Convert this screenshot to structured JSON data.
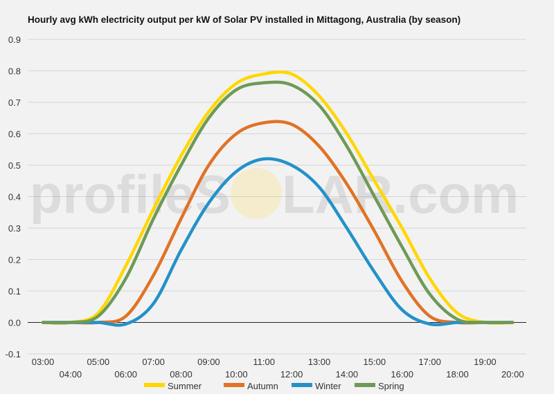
{
  "chart_data": {
    "type": "line",
    "title": "Hourly avg kWh electricity output per kW of Solar PV installed in Mittagong, Australia (by season)",
    "xlabel": "",
    "ylabel": "",
    "x": [
      3,
      4,
      5,
      6,
      7,
      8,
      9,
      10,
      11,
      12,
      13,
      14,
      15,
      16,
      17,
      18,
      19,
      20
    ],
    "x_tick_labels": [
      "03:00",
      "04:00",
      "05:00",
      "06:00",
      "07:00",
      "08:00",
      "09:00",
      "10:00",
      "11:00",
      "12:00",
      "13:00",
      "14:00",
      "15:00",
      "16:00",
      "17:00",
      "18:00",
      "19:00",
      "20:00"
    ],
    "ylim": [
      -0.1,
      0.9
    ],
    "y_ticks": [
      "-0.1",
      "0.0",
      "0.1",
      "0.2",
      "0.3",
      "0.4",
      "0.5",
      "0.6",
      "0.7",
      "0.8",
      "0.9"
    ],
    "grid": true,
    "legend_position": "bottom",
    "series": [
      {
        "name": "Summer",
        "color": "#ffd700",
        "values": [
          0.0,
          0.0,
          0.03,
          0.18,
          0.36,
          0.53,
          0.67,
          0.76,
          0.79,
          0.79,
          0.72,
          0.6,
          0.45,
          0.3,
          0.14,
          0.03,
          0.0,
          0.0
        ]
      },
      {
        "name": "Autumn",
        "color": "#e07326",
        "values": [
          0.0,
          0.0,
          0.0,
          0.02,
          0.15,
          0.33,
          0.5,
          0.6,
          0.635,
          0.63,
          0.56,
          0.44,
          0.29,
          0.13,
          0.02,
          0.0,
          0.0,
          0.0
        ]
      },
      {
        "name": "Winter",
        "color": "#2491c9",
        "values": [
          0.0,
          0.0,
          0.0,
          -0.005,
          0.06,
          0.23,
          0.38,
          0.48,
          0.52,
          0.5,
          0.43,
          0.3,
          0.16,
          0.04,
          -0.005,
          0.0,
          0.0,
          0.0
        ]
      },
      {
        "name": "Spring",
        "color": "#6e9a57",
        "values": [
          0.0,
          0.0,
          0.02,
          0.14,
          0.33,
          0.5,
          0.65,
          0.74,
          0.762,
          0.755,
          0.69,
          0.56,
          0.4,
          0.24,
          0.09,
          0.01,
          0.0,
          0.0
        ]
      }
    ]
  },
  "watermark": {
    "text_left": "profileS",
    "text_right": "LAR.com"
  }
}
